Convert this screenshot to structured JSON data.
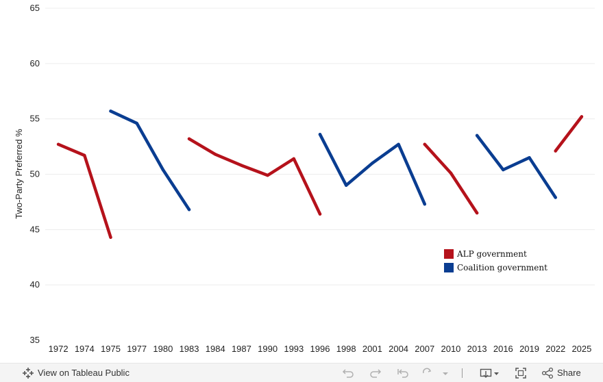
{
  "chart_data": {
    "type": "line",
    "ylabel": "Two-Party Preferred %",
    "xlabel": "",
    "ylim": [
      35,
      65
    ],
    "yticks": [
      35,
      40,
      45,
      50,
      55,
      60,
      65
    ],
    "categories": [
      "1972",
      "1974",
      "1975",
      "1977",
      "1980",
      "1983",
      "1984",
      "1987",
      "1990",
      "1993",
      "1996",
      "1998",
      "2001",
      "2004",
      "2007",
      "2010",
      "2013",
      "2016",
      "2019",
      "2022",
      "2025"
    ],
    "grid": true,
    "legend_position": "right",
    "legend": [
      {
        "name": "ALP government",
        "color": "#b5121b"
      },
      {
        "name": "Coalition government",
        "color": "#0a3d91"
      }
    ],
    "series": [
      {
        "government": "ALP government",
        "color": "#b5121b",
        "points": [
          [
            "1972",
            52.7
          ],
          [
            "1974",
            51.7
          ],
          [
            "1975",
            44.3
          ]
        ]
      },
      {
        "government": "Coalition government",
        "color": "#0a3d91",
        "points": [
          [
            "1975",
            55.7
          ],
          [
            "1977",
            54.6
          ],
          [
            "1980",
            50.4
          ],
          [
            "1983",
            46.8
          ]
        ]
      },
      {
        "government": "ALP government",
        "color": "#b5121b",
        "points": [
          [
            "1983",
            53.2
          ],
          [
            "1984",
            51.8
          ],
          [
            "1987",
            50.8
          ],
          [
            "1990",
            49.9
          ],
          [
            "1993",
            51.4
          ],
          [
            "1996",
            46.4
          ]
        ]
      },
      {
        "government": "Coalition government",
        "color": "#0a3d91",
        "points": [
          [
            "1996",
            53.6
          ],
          [
            "1998",
            49.0
          ],
          [
            "2001",
            51.0
          ],
          [
            "2004",
            52.7
          ],
          [
            "2007",
            47.3
          ]
        ]
      },
      {
        "government": "ALP government",
        "color": "#b5121b",
        "points": [
          [
            "2007",
            52.7
          ],
          [
            "2010",
            50.1
          ],
          [
            "2013",
            46.5
          ]
        ]
      },
      {
        "government": "Coalition government",
        "color": "#0a3d91",
        "points": [
          [
            "2013",
            53.5
          ],
          [
            "2016",
            50.4
          ],
          [
            "2019",
            51.5
          ],
          [
            "2022",
            47.9
          ]
        ]
      },
      {
        "government": "ALP government",
        "color": "#b5121b",
        "points": [
          [
            "2022",
            52.1
          ],
          [
            "2025",
            55.2
          ]
        ]
      }
    ]
  },
  "toolbar": {
    "view_label": "View on Tableau Public",
    "share_label": "Share",
    "icons": [
      "tableau-logo-icon",
      "undo-icon",
      "redo-icon",
      "revert-icon",
      "refresh-icon",
      "dropdown-icon",
      "download-icon",
      "fullscreen-icon",
      "share-icon"
    ]
  }
}
